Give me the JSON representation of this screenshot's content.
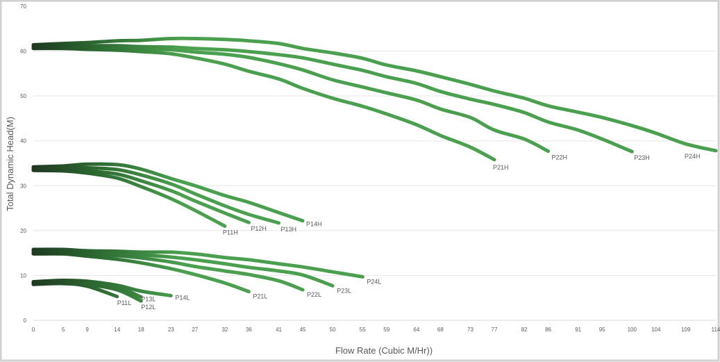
{
  "chart_data": {
    "type": "line",
    "title": "",
    "xlabel": "Flow Rate  (Cubic M/Hr))",
    "ylabel": "Total Dynamic Head(M)",
    "ylim": [
      0,
      70
    ],
    "yticks": [
      0,
      10,
      20,
      30,
      40,
      50,
      60,
      70
    ],
    "grid": true,
    "legend": "inline labels at line ends",
    "x_tick_labels": [
      "0",
      "5",
      "9",
      "14",
      "18",
      "23",
      "27",
      "32",
      "36",
      "41",
      "45",
      "50",
      "55",
      "59",
      "64",
      "68",
      "73",
      "77",
      "82",
      "86",
      "91",
      "95",
      "100",
      "104",
      "109",
      "114"
    ],
    "colors": {
      "line": "#4aa04e",
      "line_dark": "#1f3a22",
      "grid": "#e6e6e6",
      "frame": "#d0d0d0",
      "text": "#595959"
    },
    "series": [
      {
        "name": "P11L",
        "points": [
          [
            0,
            8
          ],
          [
            5,
            8.2
          ],
          [
            9,
            7.6
          ],
          [
            14,
            5.3
          ]
        ]
      },
      {
        "name": "P12L",
        "points": [
          [
            0,
            8.2
          ],
          [
            5,
            8.5
          ],
          [
            9,
            8
          ],
          [
            14,
            6.8
          ],
          [
            18,
            4.3
          ]
        ]
      },
      {
        "name": "P13L",
        "points": [
          [
            0,
            8.4
          ],
          [
            5,
            8.7
          ],
          [
            9,
            8.4
          ],
          [
            14,
            7.4
          ],
          [
            18,
            5.2
          ]
        ]
      },
      {
        "name": "P14L",
        "points": [
          [
            0,
            8.6
          ],
          [
            5,
            8.9
          ],
          [
            9,
            8.7
          ],
          [
            14,
            7.8
          ],
          [
            18,
            6.5
          ],
          [
            23,
            5.5
          ]
        ]
      },
      {
        "name": "P21L",
        "points": [
          [
            0,
            14.8
          ],
          [
            5,
            14.8
          ],
          [
            9,
            14.3
          ],
          [
            14,
            13.6
          ],
          [
            18,
            12.8
          ],
          [
            23,
            11.5
          ],
          [
            27,
            10.2
          ],
          [
            32,
            8.3
          ],
          [
            36,
            6.4
          ]
        ]
      },
      {
        "name": "P22L",
        "points": [
          [
            0,
            15.2
          ],
          [
            5,
            15.2
          ],
          [
            9,
            14.8
          ],
          [
            14,
            14.4
          ],
          [
            18,
            13.9
          ],
          [
            23,
            13
          ],
          [
            27,
            12
          ],
          [
            32,
            11
          ],
          [
            36,
            10.2
          ],
          [
            41,
            8.8
          ],
          [
            45,
            6.8
          ]
        ]
      },
      {
        "name": "P23L",
        "points": [
          [
            0,
            15.5
          ],
          [
            5,
            15.5
          ],
          [
            9,
            15.2
          ],
          [
            14,
            15
          ],
          [
            18,
            14.6
          ],
          [
            23,
            14.1
          ],
          [
            27,
            13.5
          ],
          [
            32,
            12.6
          ],
          [
            36,
            11.8
          ],
          [
            41,
            11
          ],
          [
            45,
            10.1
          ],
          [
            50,
            7.7
          ]
        ]
      },
      {
        "name": "P24L",
        "points": [
          [
            0,
            15.8
          ],
          [
            5,
            15.8
          ],
          [
            9,
            15.5
          ],
          [
            14,
            15.4
          ],
          [
            18,
            15.2
          ],
          [
            23,
            15.2
          ],
          [
            27,
            14.8
          ],
          [
            32,
            14
          ],
          [
            36,
            13.5
          ],
          [
            41,
            12.6
          ],
          [
            45,
            11.9
          ],
          [
            50,
            10.8
          ],
          [
            55,
            9.7
          ]
        ]
      },
      {
        "name": "P11H",
        "points": [
          [
            0,
            33.4
          ],
          [
            5,
            33.3
          ],
          [
            9,
            32.8
          ],
          [
            14,
            31.7
          ],
          [
            18,
            29.8
          ],
          [
            23,
            27.1
          ],
          [
            27,
            24.5
          ],
          [
            32,
            21
          ]
        ]
      },
      {
        "name": "P12H",
        "points": [
          [
            0,
            33.6
          ],
          [
            5,
            33.6
          ],
          [
            9,
            33.3
          ],
          [
            14,
            32.6
          ],
          [
            18,
            31.1
          ],
          [
            23,
            28.9
          ],
          [
            27,
            26.6
          ],
          [
            32,
            23.9
          ],
          [
            36,
            21.8
          ]
        ]
      },
      {
        "name": "P13H",
        "points": [
          [
            0,
            33.9
          ],
          [
            5,
            34
          ],
          [
            9,
            34
          ],
          [
            14,
            33.6
          ],
          [
            18,
            32.4
          ],
          [
            23,
            30.4
          ],
          [
            27,
            28.2
          ],
          [
            32,
            25.5
          ],
          [
            36,
            23.6
          ],
          [
            41,
            21.7
          ]
        ]
      },
      {
        "name": "P14H",
        "points": [
          [
            0,
            34.2
          ],
          [
            5,
            34.4
          ],
          [
            9,
            34.8
          ],
          [
            14,
            34.7
          ],
          [
            18,
            33.7
          ],
          [
            23,
            31.6
          ],
          [
            27,
            30
          ],
          [
            32,
            27.8
          ],
          [
            36,
            26.3
          ],
          [
            41,
            24
          ],
          [
            45,
            22.2
          ]
        ]
      },
      {
        "name": "P21H",
        "points": [
          [
            0,
            60.6
          ],
          [
            5,
            60.6
          ],
          [
            9,
            60.4
          ],
          [
            14,
            60.2
          ],
          [
            18,
            59.9
          ],
          [
            23,
            59.4
          ],
          [
            27,
            58.5
          ],
          [
            32,
            57.1
          ],
          [
            36,
            55.5
          ],
          [
            41,
            53.8
          ],
          [
            45,
            51.7
          ],
          [
            50,
            49.5
          ],
          [
            55,
            47.7
          ],
          [
            59,
            46
          ],
          [
            64,
            43.6
          ],
          [
            68,
            41.2
          ],
          [
            73,
            38.6
          ],
          [
            77,
            35.8
          ]
        ]
      },
      {
        "name": "P22H",
        "points": [
          [
            0,
            60.8
          ],
          [
            5,
            60.9
          ],
          [
            9,
            60.8
          ],
          [
            14,
            60.7
          ],
          [
            18,
            60.5
          ],
          [
            23,
            60.3
          ],
          [
            27,
            59.8
          ],
          [
            32,
            59.3
          ],
          [
            36,
            58.6
          ],
          [
            41,
            57.2
          ],
          [
            45,
            55.8
          ],
          [
            50,
            53.6
          ],
          [
            55,
            52
          ],
          [
            59,
            50.7
          ],
          [
            64,
            49.1
          ],
          [
            68,
            47.1
          ],
          [
            73,
            45.2
          ],
          [
            77,
            42.4
          ],
          [
            82,
            40.4
          ],
          [
            86,
            37.7
          ]
        ]
      },
      {
        "name": "P23H",
        "points": [
          [
            0,
            61.1
          ],
          [
            5,
            61.2
          ],
          [
            9,
            61.2
          ],
          [
            14,
            61.2
          ],
          [
            18,
            61
          ],
          [
            23,
            60.9
          ],
          [
            27,
            60.6
          ],
          [
            32,
            60.3
          ],
          [
            36,
            59.9
          ],
          [
            41,
            59.2
          ],
          [
            45,
            58.5
          ],
          [
            50,
            57.1
          ],
          [
            55,
            55.7
          ],
          [
            59,
            54.3
          ],
          [
            64,
            52.8
          ],
          [
            68,
            51
          ],
          [
            73,
            49.3
          ],
          [
            77,
            48.1
          ],
          [
            82,
            46.3
          ],
          [
            86,
            44.2
          ],
          [
            91,
            42.4
          ],
          [
            95,
            40.4
          ],
          [
            100,
            37.6
          ]
        ]
      },
      {
        "name": "P24H",
        "points": [
          [
            0,
            61.4
          ],
          [
            5,
            61.7
          ],
          [
            9,
            61.9
          ],
          [
            14,
            62.3
          ],
          [
            18,
            62.4
          ],
          [
            23,
            62.8
          ],
          [
            27,
            62.8
          ],
          [
            32,
            62.6
          ],
          [
            36,
            62.3
          ],
          [
            41,
            61.7
          ],
          [
            45,
            60.6
          ],
          [
            50,
            59.6
          ],
          [
            55,
            58.4
          ],
          [
            59,
            56.9
          ],
          [
            64,
            55.6
          ],
          [
            68,
            54.3
          ],
          [
            73,
            52.6
          ],
          [
            77,
            51.1
          ],
          [
            82,
            49.5
          ],
          [
            86,
            47.8
          ],
          [
            91,
            46.4
          ],
          [
            95,
            45.2
          ],
          [
            100,
            43.4
          ],
          [
            104,
            41.7
          ],
          [
            109,
            39.3
          ],
          [
            114,
            37.8
          ]
        ]
      }
    ]
  }
}
